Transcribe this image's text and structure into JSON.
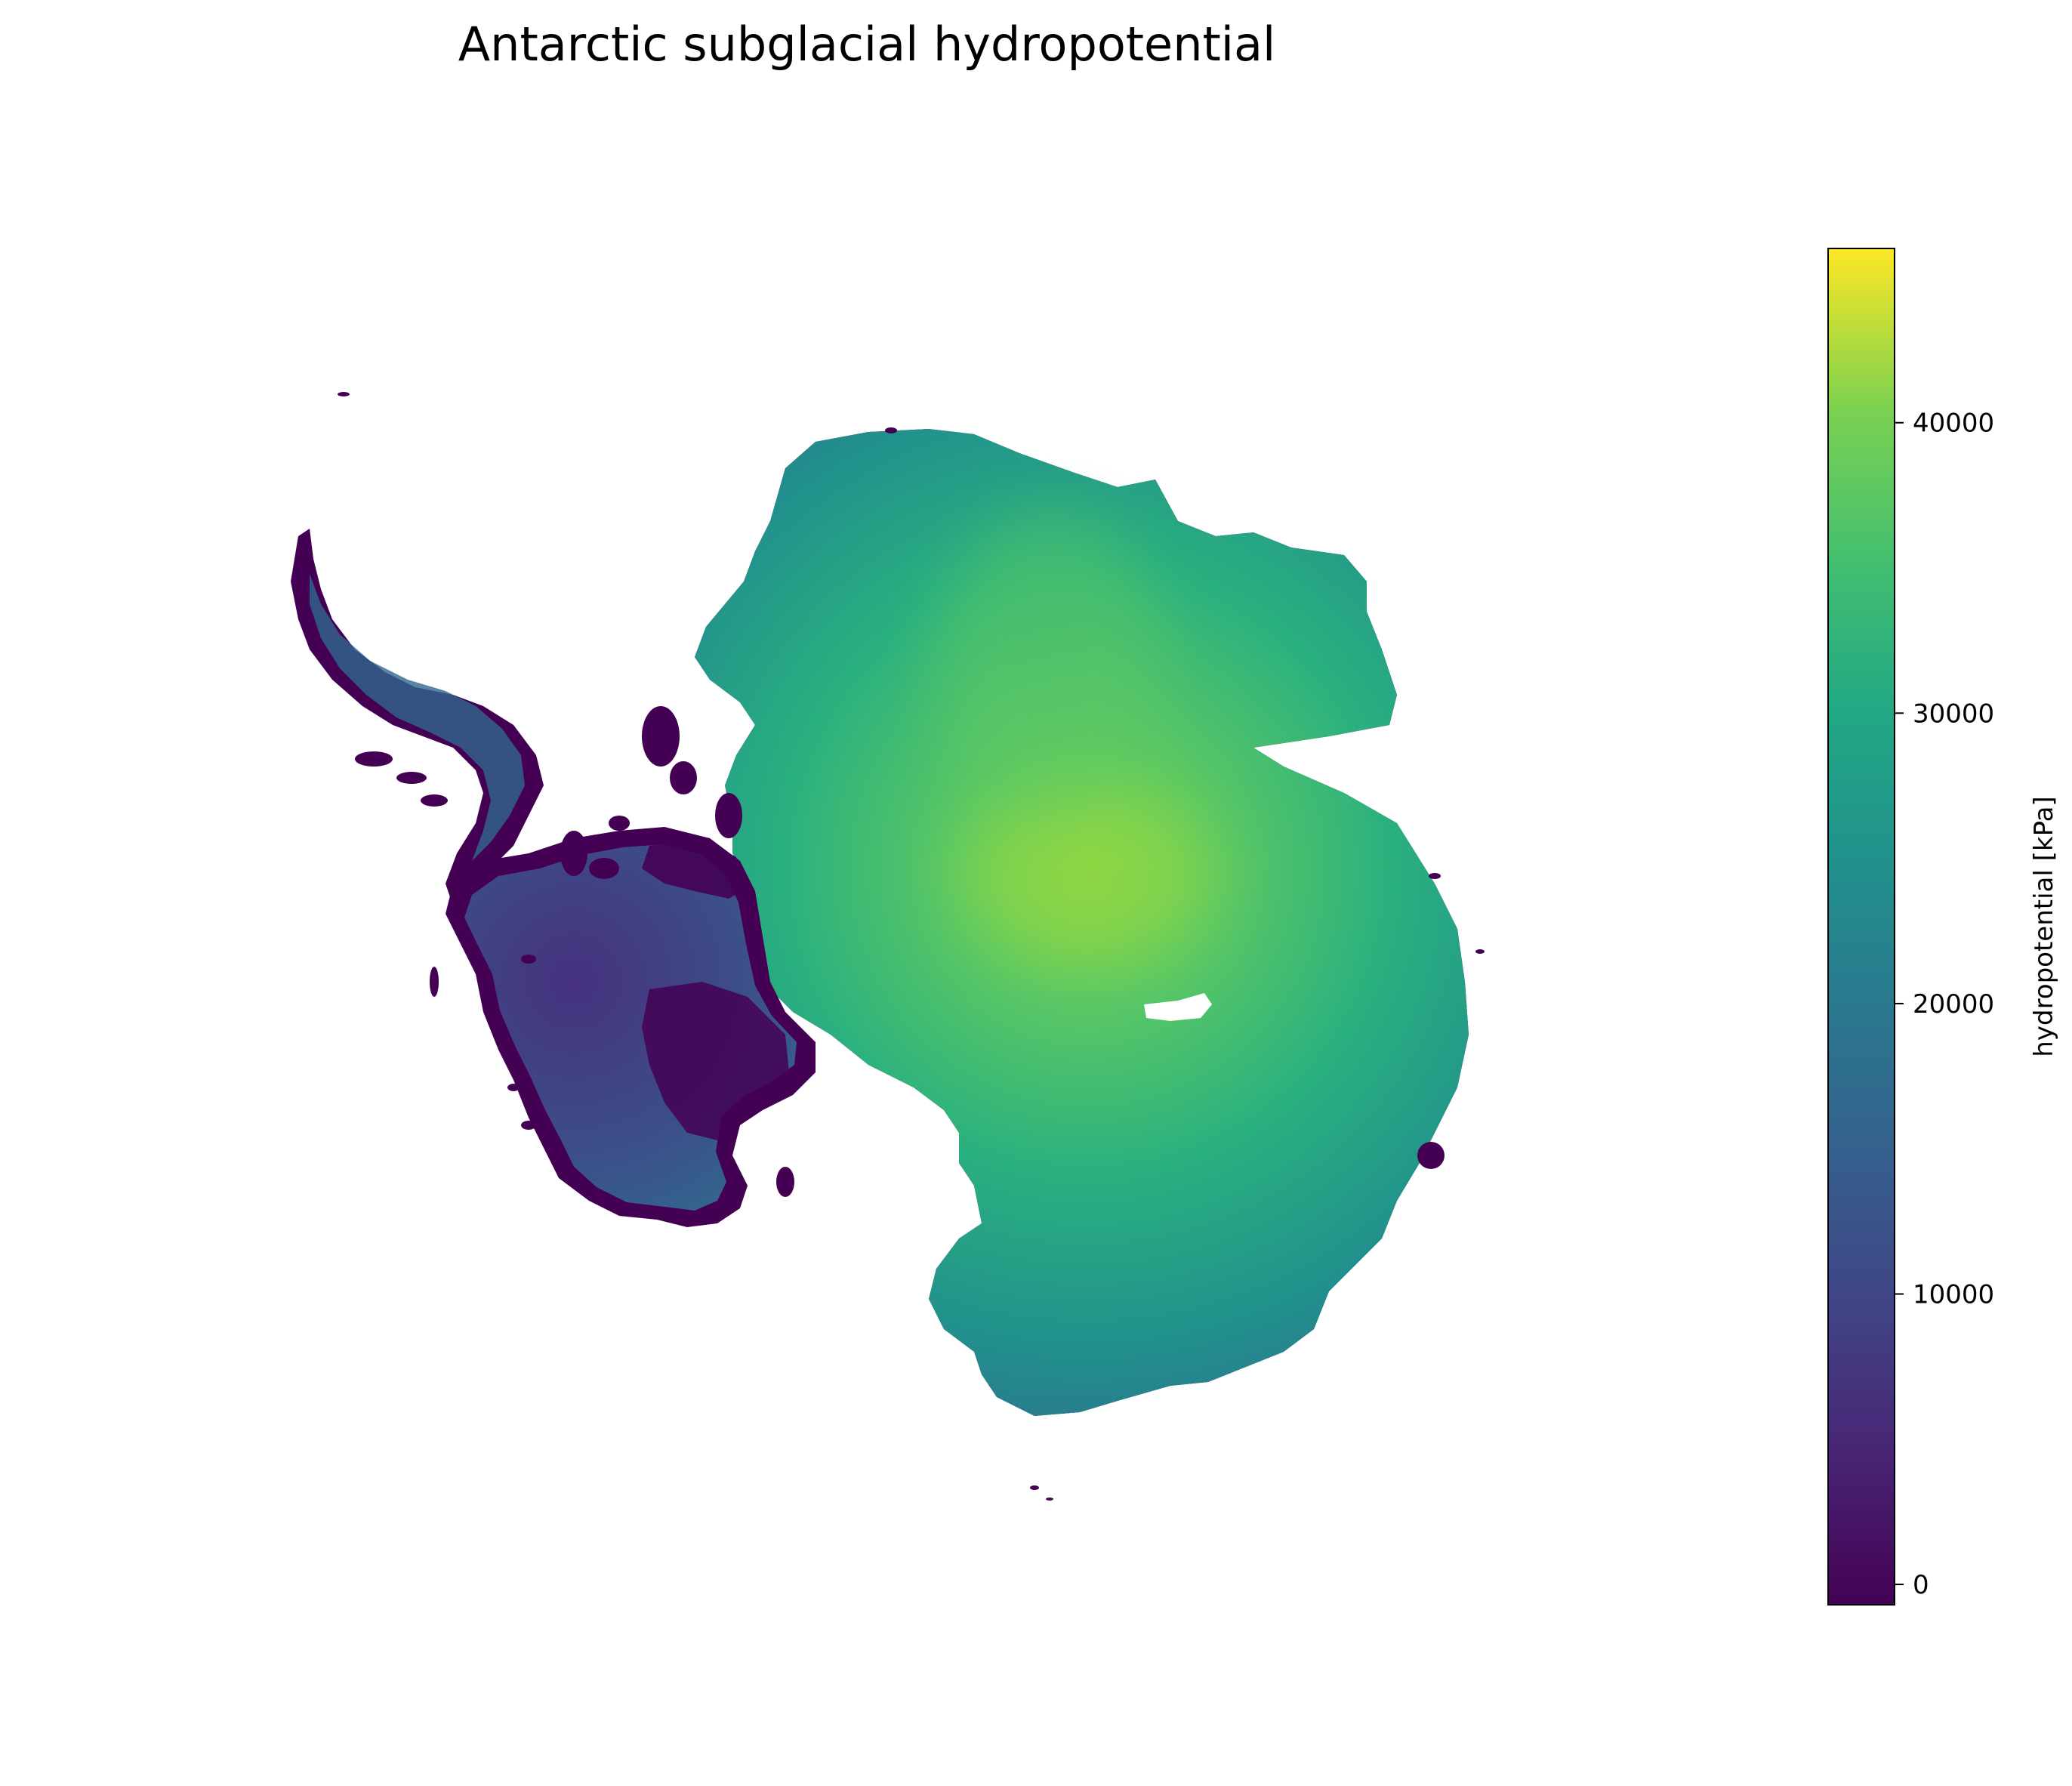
{
  "title": "Antarctic subglacial hydropotential",
  "colorbar": {
    "label": "hydropotential [kPa]",
    "colormap": "viridis",
    "range": [
      -700,
      46000
    ],
    "ticks": [
      0,
      10000,
      20000,
      30000,
      40000
    ]
  },
  "colors": {
    "coast": "#440154",
    "low": "#3b528b",
    "mid": "#21918c",
    "high": "#5ec962",
    "peak": "#addc30",
    "no_data": "#ffffff"
  }
}
